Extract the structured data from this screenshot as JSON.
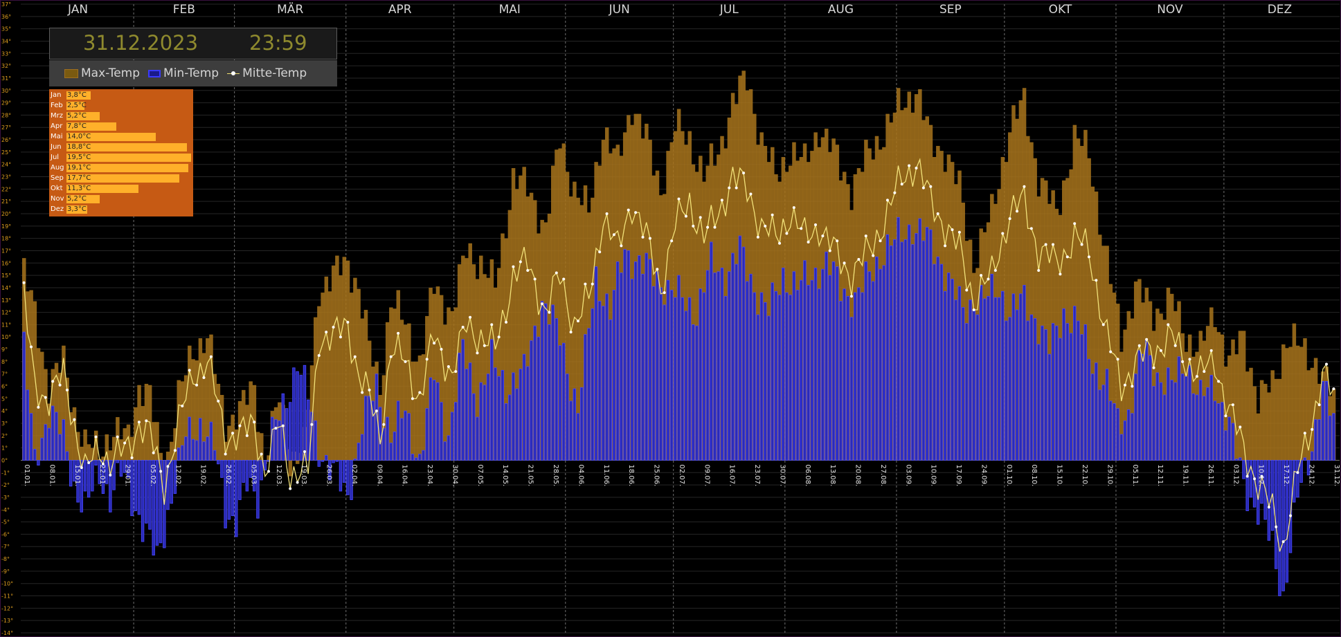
{
  "header": {
    "date": "31.12.2023",
    "time": "23:59"
  },
  "legend": {
    "max": "Max-Temp",
    "min": "Min-Temp",
    "mid": "Mitte-Temp"
  },
  "monthly_avg": [
    {
      "label": "Jan",
      "value": "3,8°C",
      "num": 3.8
    },
    {
      "label": "Feb",
      "value": "2,5°C",
      "num": 2.5
    },
    {
      "label": "Mrz",
      "value": "5,2°C",
      "num": 5.2
    },
    {
      "label": "Apr",
      "value": "7,8°C",
      "num": 7.8
    },
    {
      "label": "Mai",
      "value": "14,0°C",
      "num": 14.0
    },
    {
      "label": "Jun",
      "value": "18,8°C",
      "num": 18.8
    },
    {
      "label": "Jul",
      "value": "19,5°C",
      "num": 19.5
    },
    {
      "label": "Aug",
      "value": "19,1°C",
      "num": 19.1
    },
    {
      "label": "Sep",
      "value": "17,7°C",
      "num": 17.7
    },
    {
      "label": "Okt",
      "value": "11,3°C",
      "num": 11.3
    },
    {
      "label": "Nov",
      "value": "5,2°C",
      "num": 5.2
    },
    {
      "label": "Dez",
      "value": "3,3°C",
      "num": 3.3
    }
  ],
  "colors": {
    "max_bar": "#a8741c",
    "min_bar": "#2a2ab8",
    "min_outline": "#4848ff",
    "mid_line": "#f2e27a",
    "avg_bg": "#c65a14",
    "avg_bar": "#ffb02a",
    "axis_text": "#e0a020"
  },
  "chart_data": {
    "type": "bar",
    "title": "",
    "ylim": [
      -14,
      37
    ],
    "y_ticks": [
      "-14°",
      "-13°",
      "-12°",
      "-11°",
      "-10°",
      "-9°",
      "-8°",
      "-7°",
      "-6°",
      "-5°",
      "-4°",
      "-3°",
      "-2°",
      "-1°",
      "0°",
      "1°",
      "2°",
      "3°",
      "4°",
      "5°",
      "6°",
      "7°",
      "8°",
      "9°",
      "10°",
      "11°",
      "12°",
      "13°",
      "14°",
      "15°",
      "16°",
      "17°",
      "18°",
      "19°",
      "20°",
      "21°",
      "22°",
      "23°",
      "24°",
      "25°",
      "26°",
      "27°",
      "28°",
      "29°",
      "30°",
      "31°",
      "32°",
      "33°",
      "34°",
      "35°",
      "36°",
      "37°"
    ],
    "months": [
      "JAN",
      "FEB",
      "MÄR",
      "APR",
      "MAI",
      "JUN",
      "JUL",
      "AUG",
      "SEP",
      "OKT",
      "NOV",
      "DEZ"
    ],
    "x_ticks": [
      "01.01.",
      "08.01.",
      "15.01.",
      "22.01.",
      "29.01.",
      "05.02.",
      "12.02.",
      "19.02.",
      "26.02.",
      "05.03.",
      "12.03.",
      "19.03.",
      "26.03.",
      "02.04.",
      "09.04.",
      "16.04.",
      "23.04.",
      "30.04.",
      "07.05.",
      "14.05.",
      "21.05.",
      "28.05.",
      "04.06.",
      "11.06.",
      "18.06.",
      "25.06.",
      "02.07.",
      "09.07.",
      "16.07.",
      "23.07.",
      "30.07.",
      "06.08.",
      "13.08.",
      "20.08.",
      "27.08.",
      "03.09.",
      "10.09.",
      "17.09.",
      "24.09.",
      "01.10.",
      "08.10.",
      "15.10.",
      "22.10.",
      "29.10.",
      "05.11.",
      "12.11.",
      "19.11.",
      "26.11.",
      "03.12.",
      "10.12.",
      "17.12.",
      "24.12.",
      "31.12."
    ],
    "anchors_max": [
      [
        1,
        15
      ],
      [
        4,
        12
      ],
      [
        8,
        6
      ],
      [
        12,
        8
      ],
      [
        15,
        4
      ],
      [
        18,
        1
      ],
      [
        22,
        1
      ],
      [
        25,
        2
      ],
      [
        30,
        2
      ],
      [
        33,
        6
      ],
      [
        36,
        5
      ],
      [
        40,
        -1
      ],
      [
        44,
        5
      ],
      [
        48,
        9
      ],
      [
        52,
        10
      ],
      [
        57,
        3
      ],
      [
        61,
        4
      ],
      [
        65,
        6
      ],
      [
        68,
        0
      ],
      [
        72,
        5
      ],
      [
        75,
        0
      ],
      [
        79,
        1
      ],
      [
        83,
        14
      ],
      [
        87,
        15
      ],
      [
        91,
        16
      ],
      [
        94,
        14
      ],
      [
        97,
        9
      ],
      [
        100,
        6
      ],
      [
        103,
        13
      ],
      [
        107,
        11
      ],
      [
        111,
        8
      ],
      [
        115,
        14
      ],
      [
        120,
        12
      ],
      [
        124,
        17
      ],
      [
        128,
        16
      ],
      [
        132,
        14
      ],
      [
        137,
        23
      ],
      [
        141,
        22
      ],
      [
        146,
        19
      ],
      [
        150,
        26
      ],
      [
        154,
        22
      ],
      [
        158,
        20
      ],
      [
        162,
        27
      ],
      [
        166,
        24
      ],
      [
        170,
        29
      ],
      [
        174,
        26
      ],
      [
        178,
        22
      ],
      [
        182,
        27
      ],
      [
        186,
        26
      ],
      [
        190,
        23
      ],
      [
        194,
        25
      ],
      [
        198,
        29
      ],
      [
        202,
        31
      ],
      [
        206,
        26
      ],
      [
        210,
        23
      ],
      [
        214,
        25
      ],
      [
        218,
        24
      ],
      [
        222,
        27
      ],
      [
        226,
        25
      ],
      [
        231,
        22
      ],
      [
        236,
        25
      ],
      [
        241,
        27
      ],
      [
        245,
        29
      ],
      [
        249,
        30
      ],
      [
        253,
        26
      ],
      [
        257,
        25
      ],
      [
        261,
        22
      ],
      [
        265,
        16
      ],
      [
        270,
        20
      ],
      [
        275,
        27
      ],
      [
        279,
        29
      ],
      [
        283,
        23
      ],
      [
        288,
        20
      ],
      [
        293,
        26
      ],
      [
        297,
        25
      ],
      [
        302,
        16
      ],
      [
        306,
        10
      ],
      [
        310,
        14
      ],
      [
        315,
        12
      ],
      [
        320,
        13
      ],
      [
        324,
        10
      ],
      [
        328,
        9
      ],
      [
        332,
        12
      ],
      [
        336,
        8
      ],
      [
        340,
        10
      ],
      [
        344,
        5
      ],
      [
        348,
        6
      ],
      [
        352,
        10
      ],
      [
        356,
        9
      ],
      [
        360,
        8
      ],
      [
        365,
        5
      ]
    ],
    "anchors_min": [
      [
        1,
        9
      ],
      [
        4,
        0
      ],
      [
        8,
        4
      ],
      [
        12,
        2
      ],
      [
        15,
        -2
      ],
      [
        18,
        -4
      ],
      [
        22,
        -1
      ],
      [
        25,
        -3
      ],
      [
        28,
        -1
      ],
      [
        31,
        -3
      ],
      [
        35,
        -6
      ],
      [
        38,
        -8
      ],
      [
        42,
        -3
      ],
      [
        46,
        2
      ],
      [
        50,
        3
      ],
      [
        54,
        1
      ],
      [
        57,
        -4
      ],
      [
        60,
        -5
      ],
      [
        63,
        -2
      ],
      [
        66,
        -3
      ],
      [
        70,
        2
      ],
      [
        74,
        5
      ],
      [
        77,
        8
      ],
      [
        80,
        5
      ],
      [
        83,
        1
      ],
      [
        87,
        -1
      ],
      [
        91,
        -3
      ],
      [
        95,
        3
      ],
      [
        99,
        6
      ],
      [
        103,
        2
      ],
      [
        107,
        4
      ],
      [
        111,
        0
      ],
      [
        115,
        7
      ],
      [
        119,
        2
      ],
      [
        123,
        9
      ],
      [
        127,
        5
      ],
      [
        131,
        8
      ],
      [
        135,
        6
      ],
      [
        140,
        7
      ],
      [
        145,
        13
      ],
      [
        150,
        10
      ],
      [
        155,
        4
      ],
      [
        160,
        15
      ],
      [
        164,
        12
      ],
      [
        168,
        17
      ],
      [
        172,
        16
      ],
      [
        176,
        15
      ],
      [
        180,
        14
      ],
      [
        184,
        13
      ],
      [
        188,
        12
      ],
      [
        192,
        16
      ],
      [
        196,
        15
      ],
      [
        200,
        17
      ],
      [
        204,
        14
      ],
      [
        208,
        12
      ],
      [
        212,
        15
      ],
      [
        216,
        14
      ],
      [
        220,
        15
      ],
      [
        224,
        16
      ],
      [
        228,
        14
      ],
      [
        232,
        13
      ],
      [
        236,
        15
      ],
      [
        240,
        17
      ],
      [
        244,
        18
      ],
      [
        248,
        19
      ],
      [
        252,
        18
      ],
      [
        256,
        16
      ],
      [
        259,
        14
      ],
      [
        262,
        12
      ],
      [
        265,
        13
      ],
      [
        268,
        13
      ],
      [
        272,
        14
      ],
      [
        275,
        12
      ],
      [
        279,
        13
      ],
      [
        283,
        11
      ],
      [
        286,
        9
      ],
      [
        290,
        12
      ],
      [
        294,
        11
      ],
      [
        298,
        8
      ],
      [
        302,
        6
      ],
      [
        305,
        3
      ],
      [
        308,
        4
      ],
      [
        312,
        9
      ],
      [
        316,
        7
      ],
      [
        320,
        6
      ],
      [
        324,
        8
      ],
      [
        328,
        5
      ],
      [
        332,
        6
      ],
      [
        336,
        3
      ],
      [
        340,
        -2
      ],
      [
        344,
        -4
      ],
      [
        348,
        -7
      ],
      [
        351,
        -11
      ],
      [
        355,
        -3
      ],
      [
        358,
        0
      ],
      [
        362,
        6
      ],
      [
        365,
        3
      ]
    ],
    "anchors_mid": [
      [
        1,
        13
      ],
      [
        4,
        6
      ],
      [
        8,
        5
      ],
      [
        12,
        7
      ],
      [
        15,
        3
      ],
      [
        18,
        -1
      ],
      [
        22,
        1
      ],
      [
        25,
        0
      ],
      [
        30,
        1
      ],
      [
        33,
        3
      ],
      [
        36,
        2
      ],
      [
        40,
        -2
      ],
      [
        44,
        3
      ],
      [
        48,
        7
      ],
      [
        52,
        8
      ],
      [
        57,
        2
      ],
      [
        61,
        2
      ],
      [
        65,
        3
      ],
      [
        68,
        -1
      ],
      [
        72,
        3
      ],
      [
        75,
        -1
      ],
      [
        80,
        -1
      ],
      [
        83,
        10
      ],
      [
        87,
        10
      ],
      [
        91,
        11
      ],
      [
        94,
        7
      ],
      [
        97,
        5
      ],
      [
        100,
        2
      ],
      [
        103,
        9
      ],
      [
        107,
        8
      ],
      [
        111,
        5
      ],
      [
        115,
        10
      ],
      [
        120,
        7
      ],
      [
        124,
        11
      ],
      [
        128,
        10
      ],
      [
        132,
        9
      ],
      [
        137,
        15
      ],
      [
        141,
        16
      ],
      [
        146,
        12
      ],
      [
        150,
        15
      ],
      [
        154,
        11
      ],
      [
        158,
        13
      ],
      [
        162,
        20
      ],
      [
        166,
        17
      ],
      [
        170,
        21
      ],
      [
        174,
        18
      ],
      [
        178,
        14
      ],
      [
        182,
        19
      ],
      [
        186,
        21
      ],
      [
        190,
        18
      ],
      [
        194,
        20
      ],
      [
        198,
        23
      ],
      [
        202,
        22
      ],
      [
        206,
        19
      ],
      [
        210,
        18
      ],
      [
        214,
        20
      ],
      [
        218,
        18
      ],
      [
        222,
        19
      ],
      [
        226,
        17
      ],
      [
        231,
        15
      ],
      [
        236,
        17
      ],
      [
        241,
        20
      ],
      [
        245,
        23
      ],
      [
        249,
        24
      ],
      [
        253,
        21
      ],
      [
        257,
        19
      ],
      [
        261,
        17
      ],
      [
        265,
        13
      ],
      [
        270,
        15
      ],
      [
        275,
        20
      ],
      [
        279,
        21
      ],
      [
        283,
        17
      ],
      [
        288,
        16
      ],
      [
        293,
        18
      ],
      [
        297,
        17
      ],
      [
        302,
        10
      ],
      [
        306,
        6
      ],
      [
        310,
        8
      ],
      [
        315,
        9
      ],
      [
        320,
        10
      ],
      [
        324,
        8
      ],
      [
        328,
        7
      ],
      [
        332,
        8
      ],
      [
        336,
        4
      ],
      [
        340,
        1
      ],
      [
        344,
        -2
      ],
      [
        348,
        -4
      ],
      [
        351,
        -7
      ],
      [
        355,
        -1
      ],
      [
        358,
        2
      ],
      [
        362,
        7
      ],
      [
        365,
        5
      ]
    ]
  }
}
